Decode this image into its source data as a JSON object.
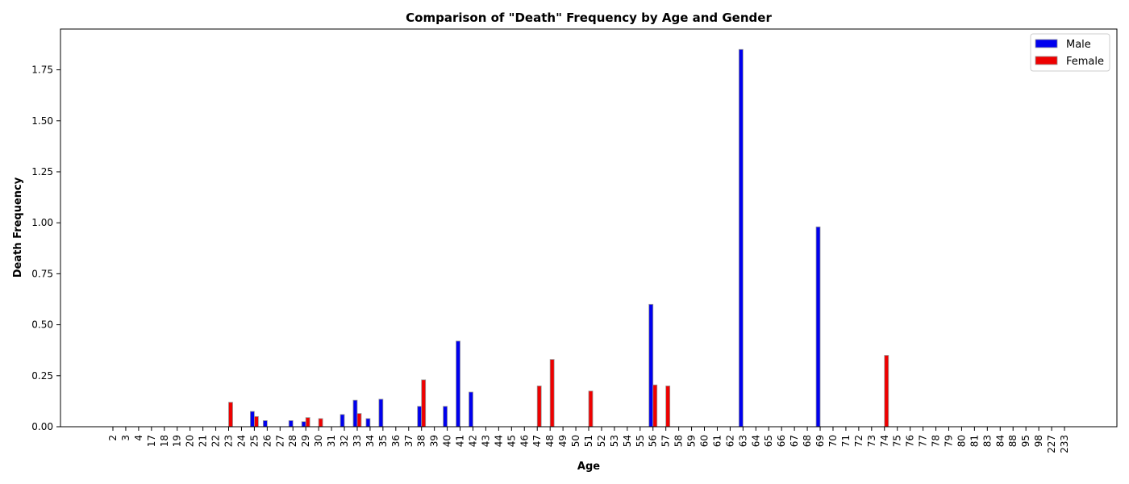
{
  "chart_data": {
    "type": "bar",
    "title": "Comparison of \"Death\" Frequency by Age and Gender",
    "xlabel": "Age",
    "ylabel": "Death Frequency",
    "ylim": [
      0,
      1.95
    ],
    "y_ticks": [
      0.0,
      0.25,
      0.5,
      0.75,
      1.0,
      1.25,
      1.5,
      1.75
    ],
    "y_tick_labels": [
      "0.00",
      "0.25",
      "0.50",
      "0.75",
      "1.00",
      "1.25",
      "1.50",
      "1.75"
    ],
    "grid": false,
    "legend_position": "top-right",
    "categories": [
      "2",
      "3",
      "4",
      "17",
      "18",
      "19",
      "20",
      "21",
      "22",
      "23",
      "24",
      "25",
      "26",
      "27",
      "28",
      "29",
      "30",
      "31",
      "32",
      "33",
      "34",
      "35",
      "36",
      "37",
      "38",
      "39",
      "40",
      "41",
      "42",
      "43",
      "44",
      "45",
      "46",
      "47",
      "48",
      "49",
      "50",
      "51",
      "52",
      "53",
      "54",
      "55",
      "56",
      "57",
      "58",
      "59",
      "60",
      "61",
      "62",
      "63",
      "64",
      "65",
      "66",
      "67",
      "68",
      "69",
      "70",
      "71",
      "72",
      "73",
      "74",
      "75",
      "76",
      "77",
      "78",
      "79",
      "80",
      "81",
      "83",
      "84",
      "88",
      "95",
      "98",
      "227",
      "233"
    ],
    "series": [
      {
        "name": "Male",
        "color": "#0000ee",
        "values": [
          0,
          0,
          0,
          0,
          0,
          0,
          0,
          0,
          0,
          0,
          0,
          0.075,
          0.03,
          0,
          0.03,
          0.025,
          0,
          0,
          0.06,
          0.13,
          0.04,
          0.135,
          0,
          0,
          0.1,
          0,
          0.1,
          0.42,
          0.17,
          0,
          0,
          0,
          0,
          0,
          0,
          0,
          0,
          0,
          0,
          0,
          0,
          0,
          0.6,
          0,
          0,
          0,
          0,
          0,
          0,
          1.85,
          0,
          0,
          0,
          0,
          0,
          0.98,
          0,
          0,
          0,
          0,
          0,
          0,
          0,
          0,
          0,
          0,
          0,
          0,
          0,
          0,
          0,
          0,
          0,
          0,
          0
        ]
      },
      {
        "name": "Female",
        "color": "#ee0000",
        "values": [
          0,
          0,
          0,
          0,
          0,
          0,
          0,
          0,
          0,
          0.12,
          0,
          0.05,
          0,
          0,
          0,
          0.045,
          0.04,
          0,
          0,
          0.065,
          0,
          0,
          0,
          0,
          0.23,
          0,
          0,
          0,
          0,
          0,
          0,
          0,
          0,
          0.2,
          0.33,
          0,
          0,
          0.175,
          0,
          0,
          0,
          0,
          0.205,
          0.2,
          0,
          0,
          0,
          0,
          0,
          0,
          0,
          0,
          0,
          0,
          0,
          0,
          0,
          0,
          0,
          0,
          0.35,
          0,
          0,
          0,
          0,
          0,
          0,
          0,
          0,
          0,
          0,
          0,
          0,
          0,
          0
        ]
      }
    ]
  }
}
